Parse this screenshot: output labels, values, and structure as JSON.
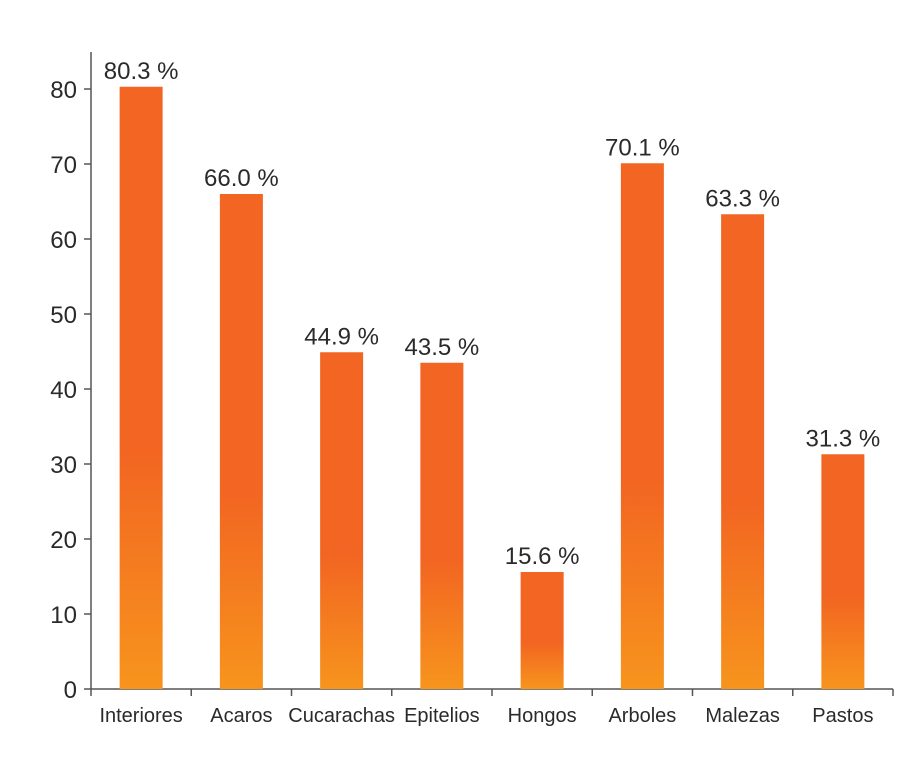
{
  "chart_data": {
    "type": "bar",
    "categories": [
      "Interiores",
      "Acaros",
      "Cucarachas",
      "Epitelios",
      "Hongos",
      "Arboles",
      "Malezas",
      "Pastos"
    ],
    "values": [
      80.3,
      66.0,
      44.9,
      43.5,
      15.6,
      70.1,
      63.3,
      31.3
    ],
    "data_labels": [
      "80.3 %",
      "66.0 %",
      "44.9 %",
      "43.5 %",
      "15.6 %",
      "70.1 %",
      "63.3 %",
      "31.3 %"
    ],
    "yticks": [
      "0",
      "10",
      "20",
      "30",
      "40",
      "50",
      "60",
      "70",
      "80"
    ],
    "ylim": [
      0,
      80
    ],
    "grid": false,
    "colors": {
      "bar_top": "#f26522",
      "bar_bottom": "#f7941d"
    }
  }
}
